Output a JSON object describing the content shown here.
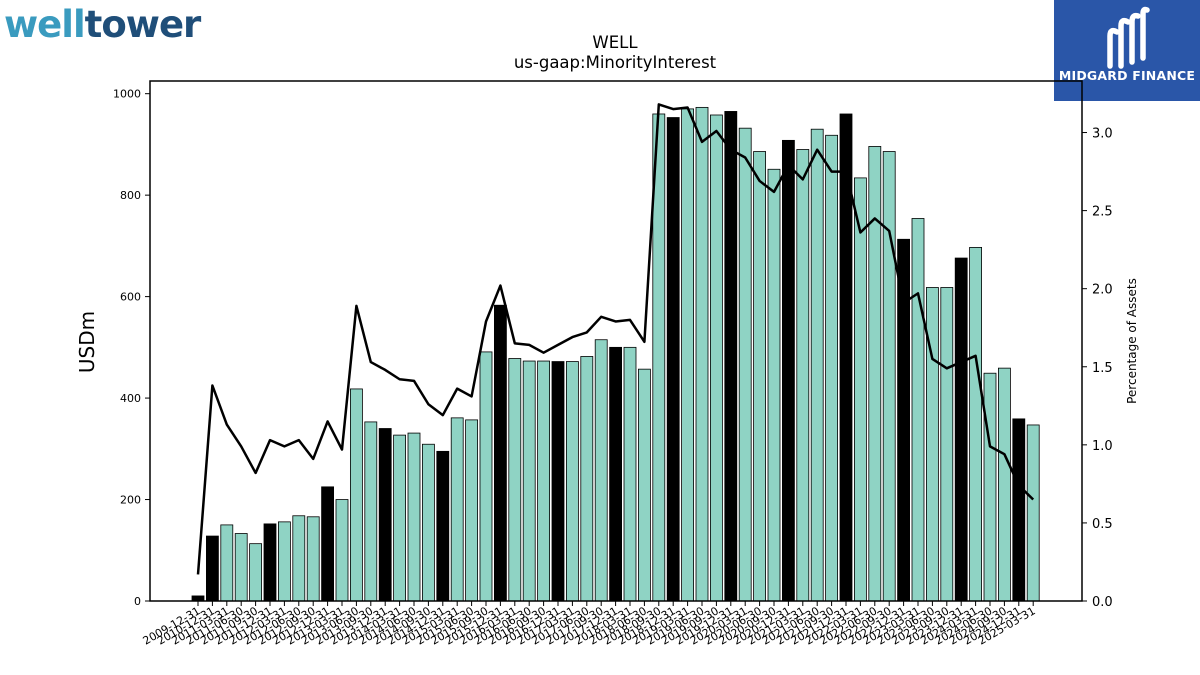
{
  "logo": {
    "part1": "well",
    "part2": "tower"
  },
  "watermark": {
    "name": "MIDGARD FINANCE",
    "icon": "midgard-logo-icon",
    "bg_color": "#2a56a8"
  },
  "chart_data": {
    "type": "bar",
    "title": "WELL",
    "subtitle": "us-gaap:MinorityInterest",
    "ylabel": "USDm",
    "y2label": "Percentage of Assets",
    "ylim": [
      0,
      1025
    ],
    "y2lim": [
      0,
      3.33
    ],
    "yticks": [
      0,
      200,
      400,
      600,
      800,
      1000
    ],
    "y2ticks": [
      "0.0",
      "0.5",
      "1.0",
      "1.5",
      "2.0",
      "2.5",
      "3.0"
    ],
    "grid": false,
    "bar_color": "#8fd3c4",
    "bar_highlight_color": "#000000",
    "line_color": "#000000",
    "categories": [
      "2009-12-31",
      "2010-12-31",
      "2011-03-31",
      "2011-06-30",
      "2011-09-30",
      "2011-12-31",
      "2012-03-31",
      "2012-06-30",
      "2012-09-30",
      "2012-12-31",
      "2013-03-31",
      "2013-06-30",
      "2013-09-30",
      "2013-12-31",
      "2014-03-31",
      "2014-06-30",
      "2014-09-30",
      "2014-12-31",
      "2015-03-31",
      "2015-06-30",
      "2015-09-30",
      "2015-12-31",
      "2016-03-31",
      "2016-06-30",
      "2016-09-30",
      "2016-12-31",
      "2017-03-31",
      "2017-06-30",
      "2017-09-30",
      "2017-12-31",
      "2018-03-31",
      "2018-06-30",
      "2018-09-30",
      "2018-12-31",
      "2019-03-31",
      "2019-06-30",
      "2019-09-30",
      "2019-12-31",
      "2020-03-31",
      "2020-06-30",
      "2020-09-30",
      "2020-12-31",
      "2021-03-31",
      "2021-06-30",
      "2021-09-30",
      "2021-12-31",
      "2022-03-31",
      "2022-06-30",
      "2022-09-30",
      "2022-12-31",
      "2023-03-31",
      "2023-06-30",
      "2023-09-30",
      "2023-12-31",
      "2024-03-31",
      "2024-06-30",
      "2024-09-30",
      "2024-12-31",
      "2025-03-31"
    ],
    "values": [
      10,
      128,
      150,
      133,
      113,
      152,
      156,
      168,
      166,
      225,
      200,
      418,
      353,
      340,
      327,
      331,
      309,
      295,
      361,
      357,
      491,
      583,
      478,
      473,
      473,
      472,
      472,
      482,
      515,
      500,
      500,
      457,
      960,
      953,
      970,
      973,
      958,
      965,
      932,
      886,
      851,
      908,
      890,
      930,
      918,
      960,
      834,
      896,
      886,
      713,
      754,
      618,
      618,
      676,
      697,
      449,
      459,
      359,
      347
    ],
    "highlight": [
      true,
      true,
      false,
      false,
      false,
      true,
      false,
      false,
      false,
      true,
      false,
      false,
      false,
      true,
      false,
      false,
      false,
      true,
      false,
      false,
      false,
      true,
      false,
      false,
      false,
      true,
      false,
      false,
      false,
      true,
      false,
      false,
      false,
      true,
      false,
      false,
      false,
      true,
      false,
      false,
      false,
      true,
      false,
      false,
      false,
      true,
      false,
      false,
      false,
      true,
      false,
      false,
      false,
      true,
      false,
      false,
      false,
      true,
      false
    ],
    "series": [
      {
        "name": "Percentage of Assets",
        "axis": "right",
        "values": [
          0.17,
          1.38,
          1.13,
          0.99,
          0.82,
          1.03,
          0.99,
          1.03,
          0.91,
          1.15,
          0.97,
          1.89,
          1.53,
          1.48,
          1.42,
          1.41,
          1.26,
          1.19,
          1.36,
          1.31,
          1.79,
          2.02,
          1.65,
          1.64,
          1.59,
          1.64,
          1.69,
          1.72,
          1.82,
          1.79,
          1.8,
          1.66,
          3.18,
          3.15,
          3.16,
          2.94,
          3.01,
          2.89,
          2.84,
          2.69,
          2.62,
          2.79,
          2.7,
          2.89,
          2.75,
          2.75,
          2.36,
          2.45,
          2.37,
          1.91,
          1.97,
          1.55,
          1.49,
          1.53,
          1.57,
          0.99,
          0.94,
          0.74,
          0.65
        ]
      }
    ]
  }
}
